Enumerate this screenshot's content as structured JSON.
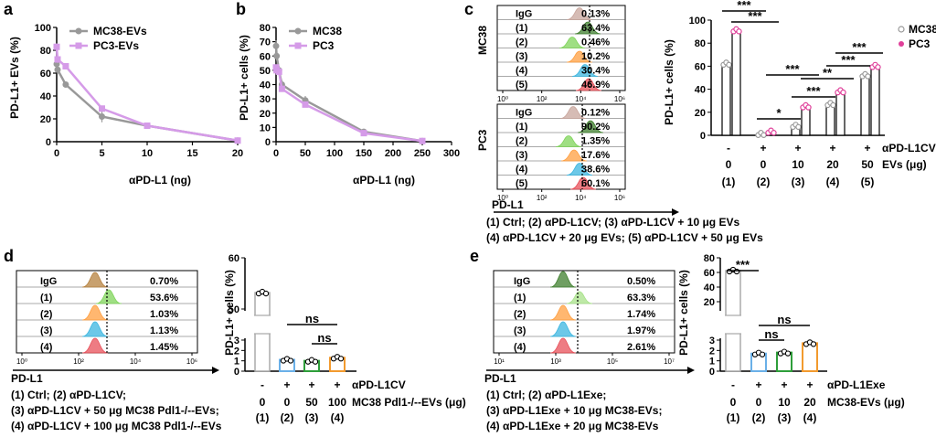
{
  "panels": {
    "a": {
      "letter": "a",
      "xlabel": "αPD-L1 (ng)",
      "ylabel": "PD-L1+ EVs (%)",
      "ylabel_sup": "+"
    },
    "b": {
      "letter": "b",
      "xlabel": "αPD-L1 (ng)",
      "ylabel": "PD-L1+ cells (%)",
      "ylabel_sup": "+"
    },
    "c": {
      "letter": "c",
      "ylabel": "PD-L1+ cells (%)",
      "flow_axis_label": "PD-L1",
      "row_labels": [
        "-",
        "+",
        "+",
        "+",
        "+"
      ],
      "row_label_text": "αPD-L1CV",
      "ev_values": [
        "0",
        "0",
        "10",
        "20",
        "50"
      ],
      "ev_label": "EVs (μg)",
      "group_numbers": [
        "(1)",
        "(2)",
        "(3)",
        "(4)",
        "(5)"
      ],
      "legend_lines": [
        "(1) Ctrl; (2) αPD-L1CV; (3) αPD-L1CV + 10 μg EVs",
        "(4) αPD-L1CV + 20 μg EVs; (5) αPD-L1CV + 50 μg EVs"
      ],
      "sig": [
        "***",
        "***",
        "*",
        "***",
        "***",
        "**",
        "***",
        "***"
      ]
    },
    "d": {
      "letter": "d",
      "ylabel": "PD-L1+ cells (%)",
      "flow_axis_label": "PD-L1",
      "row_signs": [
        "-",
        "+",
        "+",
        "+"
      ],
      "row_label_text": "αPD-L1CV",
      "ev_values": [
        "0",
        "0",
        "50",
        "100"
      ],
      "ev_label": "MC38 Pdl1-/--EVs (μg)",
      "group_numbers": [
        "(1)",
        "(2)",
        "(3)",
        "(4)"
      ],
      "legend_lines": [
        "(1) Ctrl; (2) αPD-L1CV;",
        "(3) αPD-L1CV + 50 μg MC38 Pdl1-/--EVs;",
        "(4) αPD-L1CV + 100 μg MC38 Pdl1-/--EVs"
      ],
      "sig": [
        "ns",
        "ns"
      ]
    },
    "e": {
      "letter": "e",
      "ylabel": "PD-L1+ cells (%)",
      "flow_axis_label": "PD-L1",
      "row_signs": [
        "-",
        "+",
        "+",
        "+"
      ],
      "row_label_text": "αPD-L1Exe",
      "ev_values": [
        "0",
        "0",
        "10",
        "20"
      ],
      "ev_label": "MC38-EVs (μg)",
      "group_numbers": [
        "(1)",
        "(2)",
        "(3)",
        "(4)"
      ],
      "legend_lines": [
        "(1) Ctrl; (2) αPD-L1Exe;",
        "(3) αPD-L1Exe + 10 μg MC38-EVs;",
        "(4) αPD-L1Exe + 20 μg MC38-EVs"
      ],
      "sig": [
        "***",
        "ns",
        "ns"
      ]
    }
  },
  "colors": {
    "gray": "#999999",
    "violet": "#d59be8",
    "pink": "#e0409a",
    "blue": "#6ab0e8",
    "green": "#2e9e3a",
    "orange": "#f29a2e"
  },
  "chart_data": [
    {
      "panel": "a",
      "type": "line",
      "xlabel": "αPD-L1 (ng)",
      "ylabel": "PD-L1+ EVs (%)",
      "xlim": [
        0,
        20
      ],
      "ylim": [
        0,
        100
      ],
      "xticks": [
        0,
        5,
        10,
        15,
        20
      ],
      "yticks": [
        0,
        20,
        40,
        60,
        80,
        100
      ],
      "series": [
        {
          "name": "MC38-EVs",
          "color": "#999999",
          "x": [
            0,
            0.1,
            1,
            5,
            10,
            20
          ],
          "y": [
            68,
            63,
            50,
            22,
            14,
            1
          ],
          "err": [
            4,
            4,
            2,
            5,
            1,
            0.5
          ]
        },
        {
          "name": "PC3-EVs",
          "color": "#d59be8",
          "x": [
            0,
            0.1,
            1,
            5,
            10,
            20
          ],
          "y": [
            83,
            72,
            66,
            29,
            14,
            1
          ],
          "err": [
            3,
            3,
            2,
            2,
            1,
            0.5
          ]
        }
      ]
    },
    {
      "panel": "b",
      "type": "line",
      "xlabel": "αPD-L1 (ng)",
      "ylabel": "PD-L1+ cells (%)",
      "xlim": [
        0,
        300
      ],
      "ylim": [
        0,
        80
      ],
      "xticks": [
        0,
        50,
        100,
        150,
        200,
        250,
        300
      ],
      "yticks": [
        0,
        10,
        20,
        30,
        40,
        50,
        60,
        70,
        80
      ],
      "series": [
        {
          "name": "MC38",
          "color": "#999999",
          "x": [
            0,
            1,
            5,
            10,
            50,
            150,
            250
          ],
          "y": [
            67,
            60,
            50,
            40,
            29,
            7,
            0.5
          ],
          "err": [
            4,
            3,
            3,
            3,
            3,
            1,
            0.3
          ]
        },
        {
          "name": "PC3",
          "color": "#d59be8",
          "x": [
            0,
            1,
            5,
            10,
            50,
            150,
            250
          ],
          "y": [
            52,
            50,
            49,
            37,
            26,
            6,
            0.5
          ],
          "err": [
            2,
            2,
            2,
            2,
            2,
            1,
            0.3
          ]
        }
      ]
    },
    {
      "panel": "c-flow-MC38",
      "type": "histogram",
      "row_label": "MC38",
      "xlim": "10^0-10^6",
      "tick_labels": [
        "10⁰",
        "10²",
        "10⁴",
        "10⁶"
      ],
      "rows": [
        {
          "label": "IgG",
          "value": "0.13%"
        },
        {
          "label": "(1)",
          "value": "63.4%"
        },
        {
          "label": "(2)",
          "value": "0.46%"
        },
        {
          "label": "(3)",
          "value": "10.2%"
        },
        {
          "label": "(4)",
          "value": "30.4%"
        },
        {
          "label": "(5)",
          "value": "46.9%"
        }
      ]
    },
    {
      "panel": "c-flow-PC3",
      "type": "histogram",
      "row_label": "PC3",
      "tick_labels": [
        "10⁰",
        "10²",
        "10⁴",
        "10⁶"
      ],
      "rows": [
        {
          "label": "IgG",
          "value": "0.12%"
        },
        {
          "label": "(1)",
          "value": "90.2%"
        },
        {
          "label": "(2)",
          "value": "1.35%"
        },
        {
          "label": "(3)",
          "value": "17.6%"
        },
        {
          "label": "(4)",
          "value": "38.6%"
        },
        {
          "label": "(5)",
          "value": "60.1%"
        }
      ]
    },
    {
      "panel": "c-bar",
      "type": "bar",
      "ylabel": "PD-L1+ cells (%)",
      "ylim": [
        0,
        100
      ],
      "yticks": [
        0,
        20,
        40,
        60,
        80,
        100
      ],
      "categories": [
        "(1)",
        "(2)",
        "(3)",
        "(4)",
        "(5)"
      ],
      "series": [
        {
          "name": "MC38",
          "color": "#999999",
          "values": [
            62,
            1,
            8,
            27,
            52
          ]
        },
        {
          "name": "PC3",
          "color": "#e0409a",
          "values": [
            91,
            3,
            25,
            38,
            60
          ]
        }
      ]
    },
    {
      "panel": "d-flow",
      "type": "histogram",
      "tick_labels": [
        "10⁰",
        "10²",
        "10⁴",
        "10⁶"
      ],
      "rows": [
        {
          "label": "IgG",
          "value": "0.70%"
        },
        {
          "label": "(1)",
          "value": "53.6%"
        },
        {
          "label": "(2)",
          "value": "1.03%"
        },
        {
          "label": "(3)",
          "value": "1.13%"
        },
        {
          "label": "(4)",
          "value": "1.45%"
        }
      ]
    },
    {
      "panel": "d-bar",
      "type": "bar",
      "ylabel": "PD-L1+ cells (%)",
      "yticks_top": [
        50,
        60
      ],
      "yticks_bottom": [
        0,
        1,
        2,
        3
      ],
      "categories": [
        "(1)",
        "(2)",
        "(3)",
        "(4)"
      ],
      "values": [
        53.2,
        1.1,
        1.0,
        1.3
      ]
    },
    {
      "panel": "e-flow",
      "type": "histogram",
      "tick_labels": [
        "10¹",
        "10³",
        "10⁵",
        "10⁷"
      ],
      "rows": [
        {
          "label": "IgG",
          "value": "0.50%"
        },
        {
          "label": "(1)",
          "value": "63.3%"
        },
        {
          "label": "(2)",
          "value": "1.74%"
        },
        {
          "label": "(3)",
          "value": "1.97%"
        },
        {
          "label": "(4)",
          "value": "2.61%"
        }
      ]
    },
    {
      "panel": "e-bar",
      "type": "bar",
      "ylabel": "PD-L1+ cells (%)",
      "yticks_top": [
        20,
        40,
        60,
        80
      ],
      "yticks_bottom": [
        0,
        1,
        2,
        3
      ],
      "categories": [
        "(1)",
        "(2)",
        "(3)",
        "(4)"
      ],
      "values": [
        62.5,
        1.7,
        1.8,
        2.7
      ]
    }
  ]
}
